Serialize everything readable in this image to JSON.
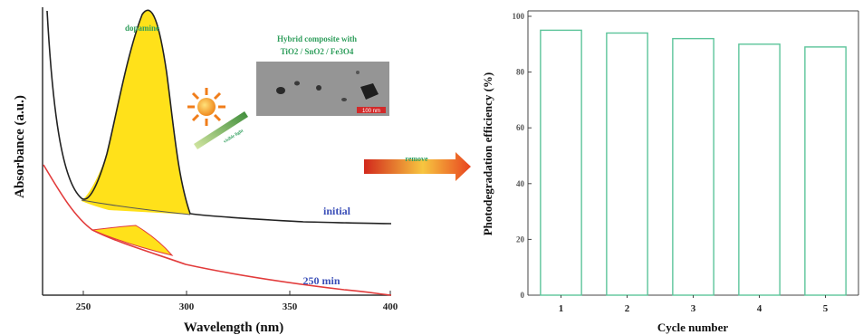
{
  "left_panel": {
    "xlabel": "Wavelength (nm)",
    "ylabel": "Absorbance (a.u.)",
    "x_ticks": [
      "250",
      "300",
      "350",
      "400"
    ],
    "annotations": {
      "peak_label": "dopamine",
      "composite_title": "Hybrid composite with",
      "composite_formula": "TiO2 / SnO2 / Fe3O4",
      "scale_bar": "100 nm",
      "light_label": "visible light",
      "initial_label": "initial",
      "final_label": "250 min"
    },
    "colors": {
      "initial_curve": "#222222",
      "final_curve": "#e23b3b",
      "fill": "#ffe11a"
    }
  },
  "arrow": {
    "label": "remove"
  },
  "chart_data": {
    "type": "bar",
    "categories": [
      "1",
      "2",
      "3",
      "4",
      "5"
    ],
    "values": [
      95,
      94,
      92,
      90,
      89
    ],
    "title": "",
    "xlabel": "Cycle number",
    "ylabel": "Photodegradation efficiency (%)",
    "ylim": [
      0,
      100
    ],
    "y_ticks": [
      "0",
      "20",
      "40",
      "60",
      "80",
      "100"
    ],
    "bar_color": "#5cc49a",
    "grid": false
  }
}
